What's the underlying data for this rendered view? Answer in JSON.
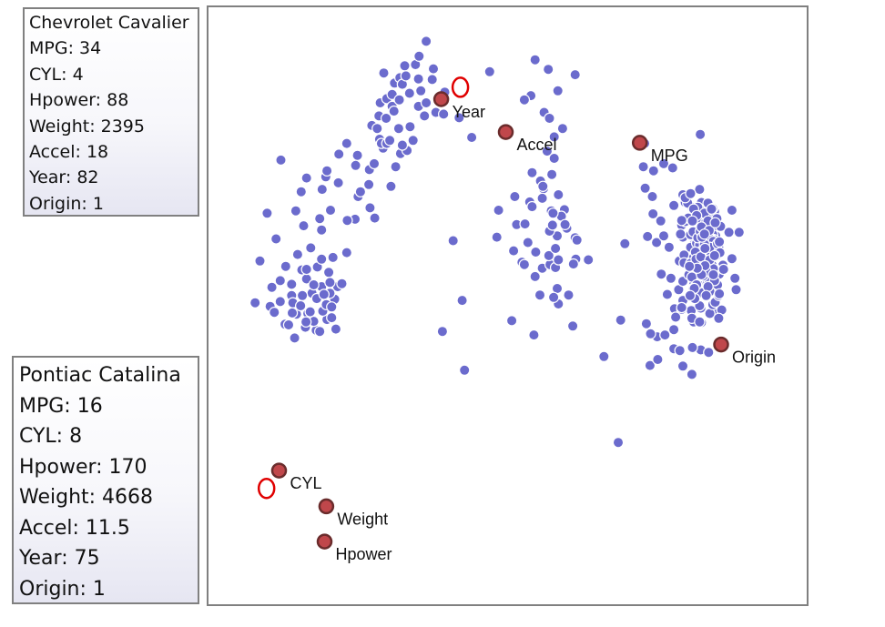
{
  "info_boxes": [
    {
      "lines": [
        "Chevrolet Cavalier",
        "MPG: 34",
        "CYL: 4",
        "Hpower: 88",
        "Weight: 2395",
        "Accel: 18",
        "Year: 82",
        "Origin: 1"
      ]
    },
    {
      "lines": [
        "Pontiac Catalina",
        "MPG: 16",
        "CYL: 8",
        "Hpower: 170",
        "Weight: 4668",
        "Accel: 11.5",
        "Year: 75",
        "Origin: 1"
      ]
    }
  ],
  "colors": {
    "point": "#6b6bcd",
    "attribute_point": "#c0474b",
    "selection_ring": "#e00000",
    "frame": "#808080"
  },
  "chart_data": {
    "type": "scatter",
    "xlim": [
      0,
      1000
    ],
    "ylim": [
      0,
      1000
    ],
    "attributes": [
      {
        "label": "Year",
        "x": 389,
        "y": 846
      },
      {
        "label": "Accel",
        "x": 497,
        "y": 791
      },
      {
        "label": "MPG",
        "x": 721,
        "y": 773
      },
      {
        "label": "Origin",
        "x": 857,
        "y": 435
      },
      {
        "label": "CYL",
        "x": 118,
        "y": 224
      },
      {
        "label": "Weight",
        "x": 197,
        "y": 164
      },
      {
        "label": "Hpower",
        "x": 194,
        "y": 105
      }
    ],
    "selected": [
      {
        "name": "Chevrolet Cavalier",
        "x": 421,
        "y": 866
      },
      {
        "name": "Pontiac Catalina",
        "x": 97,
        "y": 194
      }
    ],
    "points": [
      [
        86,
        575
      ],
      [
        113,
        612
      ],
      [
        98,
        655
      ],
      [
        146,
        659
      ],
      [
        149,
        586
      ],
      [
        156,
        560
      ],
      [
        78,
        505
      ],
      [
        103,
        499
      ],
      [
        120,
        542
      ],
      [
        173,
        521
      ],
      [
        211,
        511
      ],
      [
        198,
        477
      ],
      [
        180,
        459
      ],
      [
        144,
        446
      ],
      [
        110,
        489
      ],
      [
        106,
        531
      ],
      [
        129,
        566
      ],
      [
        159,
        634
      ],
      [
        189,
        627
      ],
      [
        208,
        581
      ],
      [
        231,
        589
      ],
      [
        182,
        565
      ],
      [
        120,
        507
      ],
      [
        147,
        486
      ],
      [
        191,
        491
      ],
      [
        213,
        461
      ],
      [
        164,
        545
      ],
      [
        139,
        517
      ],
      [
        216,
        532
      ],
      [
        223,
        537
      ],
      [
        201,
        556
      ],
      [
        186,
        457
      ],
      [
        162,
        464
      ],
      [
        128,
        469
      ],
      [
        176,
        474
      ],
      [
        189,
        532
      ],
      [
        197,
        502
      ],
      [
        206,
        498
      ],
      [
        140,
        488
      ],
      [
        164,
        561
      ],
      [
        181,
        512
      ],
      [
        166,
        487
      ],
      [
        189,
        578
      ],
      [
        203,
        539
      ],
      [
        141,
        505
      ],
      [
        139,
        536
      ],
      [
        157,
        517
      ],
      [
        176,
        535
      ],
      [
        203,
        521
      ],
      [
        134,
        468
      ],
      [
        170,
        490
      ],
      [
        206,
        480
      ],
      [
        193,
        519
      ],
      [
        154,
        500
      ],
      [
        163,
        473
      ],
      [
        171,
        597
      ],
      [
        186,
        646
      ],
      [
        121,
        744
      ],
      [
        155,
        691
      ],
      [
        164,
        714
      ],
      [
        190,
        695
      ],
      [
        196,
        716
      ],
      [
        198,
        726
      ],
      [
        204,
        660
      ],
      [
        218,
        754
      ],
      [
        217,
        706
      ],
      [
        231,
        772
      ],
      [
        249,
        752
      ],
      [
        250,
        683
      ],
      [
        245,
        645
      ],
      [
        232,
        643
      ],
      [
        254,
        691
      ],
      [
        268,
        703
      ],
      [
        269,
        728
      ],
      [
        273,
        802
      ],
      [
        285,
        818
      ],
      [
        287,
        840
      ],
      [
        282,
        797
      ],
      [
        286,
        779
      ],
      [
        297,
        814
      ],
      [
        298,
        847
      ],
      [
        307,
        834
      ],
      [
        307,
        854
      ],
      [
        310,
        826
      ],
      [
        311,
        873
      ],
      [
        293,
        890
      ],
      [
        320,
        882
      ],
      [
        324,
        871
      ],
      [
        330,
        885
      ],
      [
        328,
        902
      ],
      [
        346,
        904
      ],
      [
        351,
        880
      ],
      [
        352,
        918
      ],
      [
        364,
        943
      ],
      [
        376,
        897
      ],
      [
        374,
        879
      ],
      [
        351,
        834
      ],
      [
        361,
        818
      ],
      [
        321,
        755
      ],
      [
        342,
        777
      ],
      [
        332,
        760
      ],
      [
        292,
        764
      ],
      [
        305,
        700
      ],
      [
        289,
        772
      ],
      [
        270,
        664
      ],
      [
        278,
        647
      ],
      [
        313,
        733
      ],
      [
        277,
        738
      ],
      [
        298,
        772
      ],
      [
        246,
        735
      ],
      [
        303,
        777
      ],
      [
        324,
        769
      ],
      [
        337,
        800
      ],
      [
        318,
        797
      ],
      [
        319,
        845
      ],
      [
        336,
        856
      ],
      [
        355,
        860
      ],
      [
        364,
        840
      ],
      [
        380,
        824
      ],
      [
        395,
        858
      ],
      [
        393,
        821
      ],
      [
        419,
        815
      ],
      [
        440,
        782
      ],
      [
        470,
        892
      ],
      [
        546,
        912
      ],
      [
        568,
        896
      ],
      [
        584,
        860
      ],
      [
        613,
        887
      ],
      [
        539,
        852
      ],
      [
        528,
        845
      ],
      [
        561,
        824
      ],
      [
        570,
        814
      ],
      [
        592,
        797
      ],
      [
        578,
        783
      ],
      [
        566,
        759
      ],
      [
        578,
        747
      ],
      [
        541,
        723
      ],
      [
        555,
        709
      ],
      [
        537,
        674
      ],
      [
        515,
        636
      ],
      [
        510,
        592
      ],
      [
        485,
        660
      ],
      [
        482,
        615
      ],
      [
        512,
        683
      ],
      [
        524,
        573
      ],
      [
        558,
        563
      ],
      [
        583,
        529
      ],
      [
        613,
        614
      ],
      [
        583,
        617
      ],
      [
        560,
        696
      ],
      [
        570,
        625
      ],
      [
        616,
        610
      ],
      [
        585,
        503
      ],
      [
        609,
        466
      ],
      [
        546,
        549
      ],
      [
        554,
        518
      ],
      [
        577,
        514
      ],
      [
        599,
        630
      ],
      [
        571,
        569
      ],
      [
        580,
        564
      ],
      [
        547,
        590
      ],
      [
        614,
        578
      ],
      [
        569,
        584
      ],
      [
        602,
        518
      ],
      [
        559,
        700
      ],
      [
        585,
        686
      ],
      [
        558,
        680
      ],
      [
        573,
        659
      ],
      [
        595,
        661
      ],
      [
        590,
        650
      ],
      [
        635,
        577
      ],
      [
        610,
        570
      ],
      [
        585,
        577
      ],
      [
        574,
        720
      ],
      [
        576,
        655
      ],
      [
        529,
        637
      ],
      [
        580,
        596
      ],
      [
        596,
        636
      ],
      [
        575,
        635
      ],
      [
        534,
        606
      ],
      [
        541,
        666
      ],
      [
        528,
        569
      ],
      [
        507,
        475
      ],
      [
        409,
        609
      ],
      [
        424,
        509
      ],
      [
        391,
        457
      ],
      [
        428,
        392
      ],
      [
        544,
        451
      ],
      [
        661,
        415
      ],
      [
        685,
        271
      ],
      [
        729,
        772
      ],
      [
        822,
        787
      ],
      [
        761,
        738
      ],
      [
        776,
        731
      ],
      [
        727,
        733
      ],
      [
        744,
        726
      ],
      [
        730,
        697
      ],
      [
        742,
        683
      ],
      [
        743,
        654
      ],
      [
        749,
        606
      ],
      [
        761,
        617
      ],
      [
        791,
        635
      ],
      [
        778,
        668
      ],
      [
        793,
        686
      ],
      [
        821,
        695
      ],
      [
        824,
        673
      ],
      [
        797,
        673
      ],
      [
        808,
        665
      ],
      [
        843,
        637
      ],
      [
        831,
        599
      ],
      [
        860,
        568
      ],
      [
        887,
        623
      ],
      [
        875,
        660
      ],
      [
        846,
        622
      ],
      [
        836,
        653
      ],
      [
        835,
        672
      ],
      [
        843,
        593
      ],
      [
        836,
        580
      ],
      [
        847,
        558
      ],
      [
        851,
        535
      ],
      [
        823,
        522
      ],
      [
        786,
        527
      ],
      [
        779,
        495
      ],
      [
        778,
        460
      ],
      [
        780,
        427
      ],
      [
        750,
        448
      ],
      [
        732,
        470
      ],
      [
        738,
        400
      ],
      [
        808,
        385
      ],
      [
        823,
        426
      ],
      [
        824,
        472
      ],
      [
        807,
        492
      ],
      [
        815,
        580
      ],
      [
        835,
        631
      ],
      [
        793,
        615
      ],
      [
        770,
        598
      ],
      [
        811,
        624
      ],
      [
        823,
        590
      ],
      [
        811,
        535
      ],
      [
        815,
        616
      ],
      [
        696,
        604
      ],
      [
        809,
        430
      ],
      [
        778,
        428
      ],
      [
        834,
        574
      ],
      [
        802,
        583
      ],
      [
        757,
        553
      ],
      [
        823,
        611
      ],
      [
        843,
        553
      ],
      [
        882,
        527
      ],
      [
        739,
        453
      ],
      [
        791,
        494
      ],
      [
        818,
        596
      ],
      [
        848,
        617
      ],
      [
        843,
        619
      ],
      [
        823,
        496
      ],
      [
        849,
        493
      ],
      [
        734,
        616
      ],
      [
        836,
        634
      ],
      [
        793,
        541
      ],
      [
        837,
        565
      ],
      [
        845,
        611
      ],
      [
        823,
        579
      ],
      [
        840,
        550
      ],
      [
        810,
        529
      ],
      [
        793,
        509
      ],
      [
        811,
        473
      ],
      [
        821,
        474
      ],
      [
        787,
        575
      ],
      [
        809,
        591
      ],
      [
        838,
        557
      ],
      [
        843,
        595
      ],
      [
        842,
        599
      ],
      [
        810,
        574
      ],
      [
        826,
        637
      ],
      [
        880,
        546
      ],
      [
        826,
        592
      ],
      [
        689,
        476
      ],
      [
        788,
        425
      ],
      [
        793,
        399
      ],
      [
        836,
        422
      ],
      [
        829,
        566
      ],
      [
        845,
        564
      ],
      [
        838,
        487
      ],
      [
        808,
        479
      ],
      [
        806,
        554
      ],
      [
        817,
        572
      ],
      [
        809,
        588
      ],
      [
        810,
        602
      ],
      [
        795,
        585
      ],
      [
        821,
        500
      ],
      [
        821,
        473
      ],
      [
        858,
        493
      ],
      [
        791,
        497
      ],
      [
        838,
        524
      ],
      [
        839,
        584
      ],
      [
        818,
        543
      ],
      [
        813,
        512
      ],
      [
        806,
        598
      ],
      [
        836,
        596
      ],
      [
        870,
        623
      ],
      [
        816,
        605
      ],
      [
        826,
        629
      ],
      [
        836,
        616
      ],
      [
        843,
        502
      ],
      [
        767,
        519
      ],
      [
        756,
        642
      ],
      [
        797,
        641
      ],
      [
        815,
        653
      ],
      [
        821,
        662
      ],
      [
        829,
        646
      ],
      [
        801,
        672
      ],
      [
        829,
        541
      ],
      [
        781,
        481
      ],
      [
        751,
        410
      ],
      [
        763,
        451
      ],
      [
        847,
        506
      ],
      [
        846,
        658
      ],
      [
        875,
        579
      ],
      [
        843,
        564
      ],
      [
        840,
        549
      ],
      [
        806,
        619
      ],
      [
        810,
        624
      ],
      [
        826,
        609
      ],
      [
        806,
        555
      ],
      [
        854,
        553
      ],
      [
        821,
        602
      ],
      [
        816,
        559
      ],
      [
        833,
        574
      ],
      [
        853,
        598
      ],
      [
        809,
        575
      ],
      [
        806,
        573
      ],
      [
        842,
        568
      ],
      [
        843,
        592
      ],
      [
        853,
        517
      ],
      [
        853,
        479
      ],
      [
        773,
        546
      ],
      [
        845,
        555
      ],
      [
        818,
        537
      ],
      [
        812,
        584
      ],
      [
        795,
        572
      ],
      [
        833,
        611
      ],
      [
        830,
        633
      ],
      [
        789,
        620
      ],
      [
        823,
        639
      ],
      [
        802,
        647
      ],
      [
        843,
        663
      ],
      [
        813,
        567
      ],
      [
        818,
        665
      ],
      [
        791,
        643
      ],
      [
        826,
        588
      ],
      [
        822,
        581
      ],
      [
        803,
        552
      ],
      [
        844,
        562
      ],
      [
        827,
        611
      ],
      [
        824,
        571
      ],
      [
        840,
        612
      ],
      [
        839,
        590
      ],
      [
        809,
        566
      ],
      [
        838,
        612
      ],
      [
        828,
        559
      ],
      [
        811,
        581
      ],
      [
        826,
        593
      ],
      [
        849,
        584
      ],
      [
        852,
        591
      ],
      [
        825,
        573
      ],
      [
        844,
        608
      ],
      [
        811,
        662
      ],
      [
        831,
        639
      ],
      [
        797,
        681
      ],
      [
        806,
        688
      ],
      [
        850,
        646
      ],
      [
        829,
        655
      ],
      [
        841,
        662
      ],
      [
        816,
        651
      ],
      [
        856,
        633
      ],
      [
        818,
        614
      ],
      [
        835,
        546
      ],
      [
        827,
        550
      ],
      [
        808,
        548
      ],
      [
        816,
        535
      ],
      [
        832,
        558
      ],
      [
        806,
        571
      ],
      [
        814,
        590
      ],
      [
        838,
        598
      ],
      [
        851,
        604
      ],
      [
        822,
        625
      ],
      [
        815,
        578
      ],
      [
        829,
        603
      ],
      [
        823,
        582
      ],
      [
        838,
        577
      ],
      [
        855,
        589
      ],
      [
        830,
        567
      ],
      [
        846,
        542
      ],
      [
        835,
        532
      ],
      [
        812,
        529
      ],
      [
        805,
        517
      ],
      [
        832,
        517
      ],
      [
        854,
        520
      ],
      [
        861,
        561
      ],
      [
        846,
        584
      ],
      [
        824,
        552
      ],
      [
        817,
        563
      ],
      [
        804,
        566
      ],
      [
        809,
        642
      ],
      [
        835,
        642
      ],
      [
        824,
        632
      ],
      [
        837,
        626
      ],
      [
        825,
        615
      ],
      [
        829,
        620
      ],
      [
        847,
        639
      ],
      [
        830,
        596
      ],
      [
        854,
        607
      ],
      [
        844,
        552
      ]
    ]
  }
}
